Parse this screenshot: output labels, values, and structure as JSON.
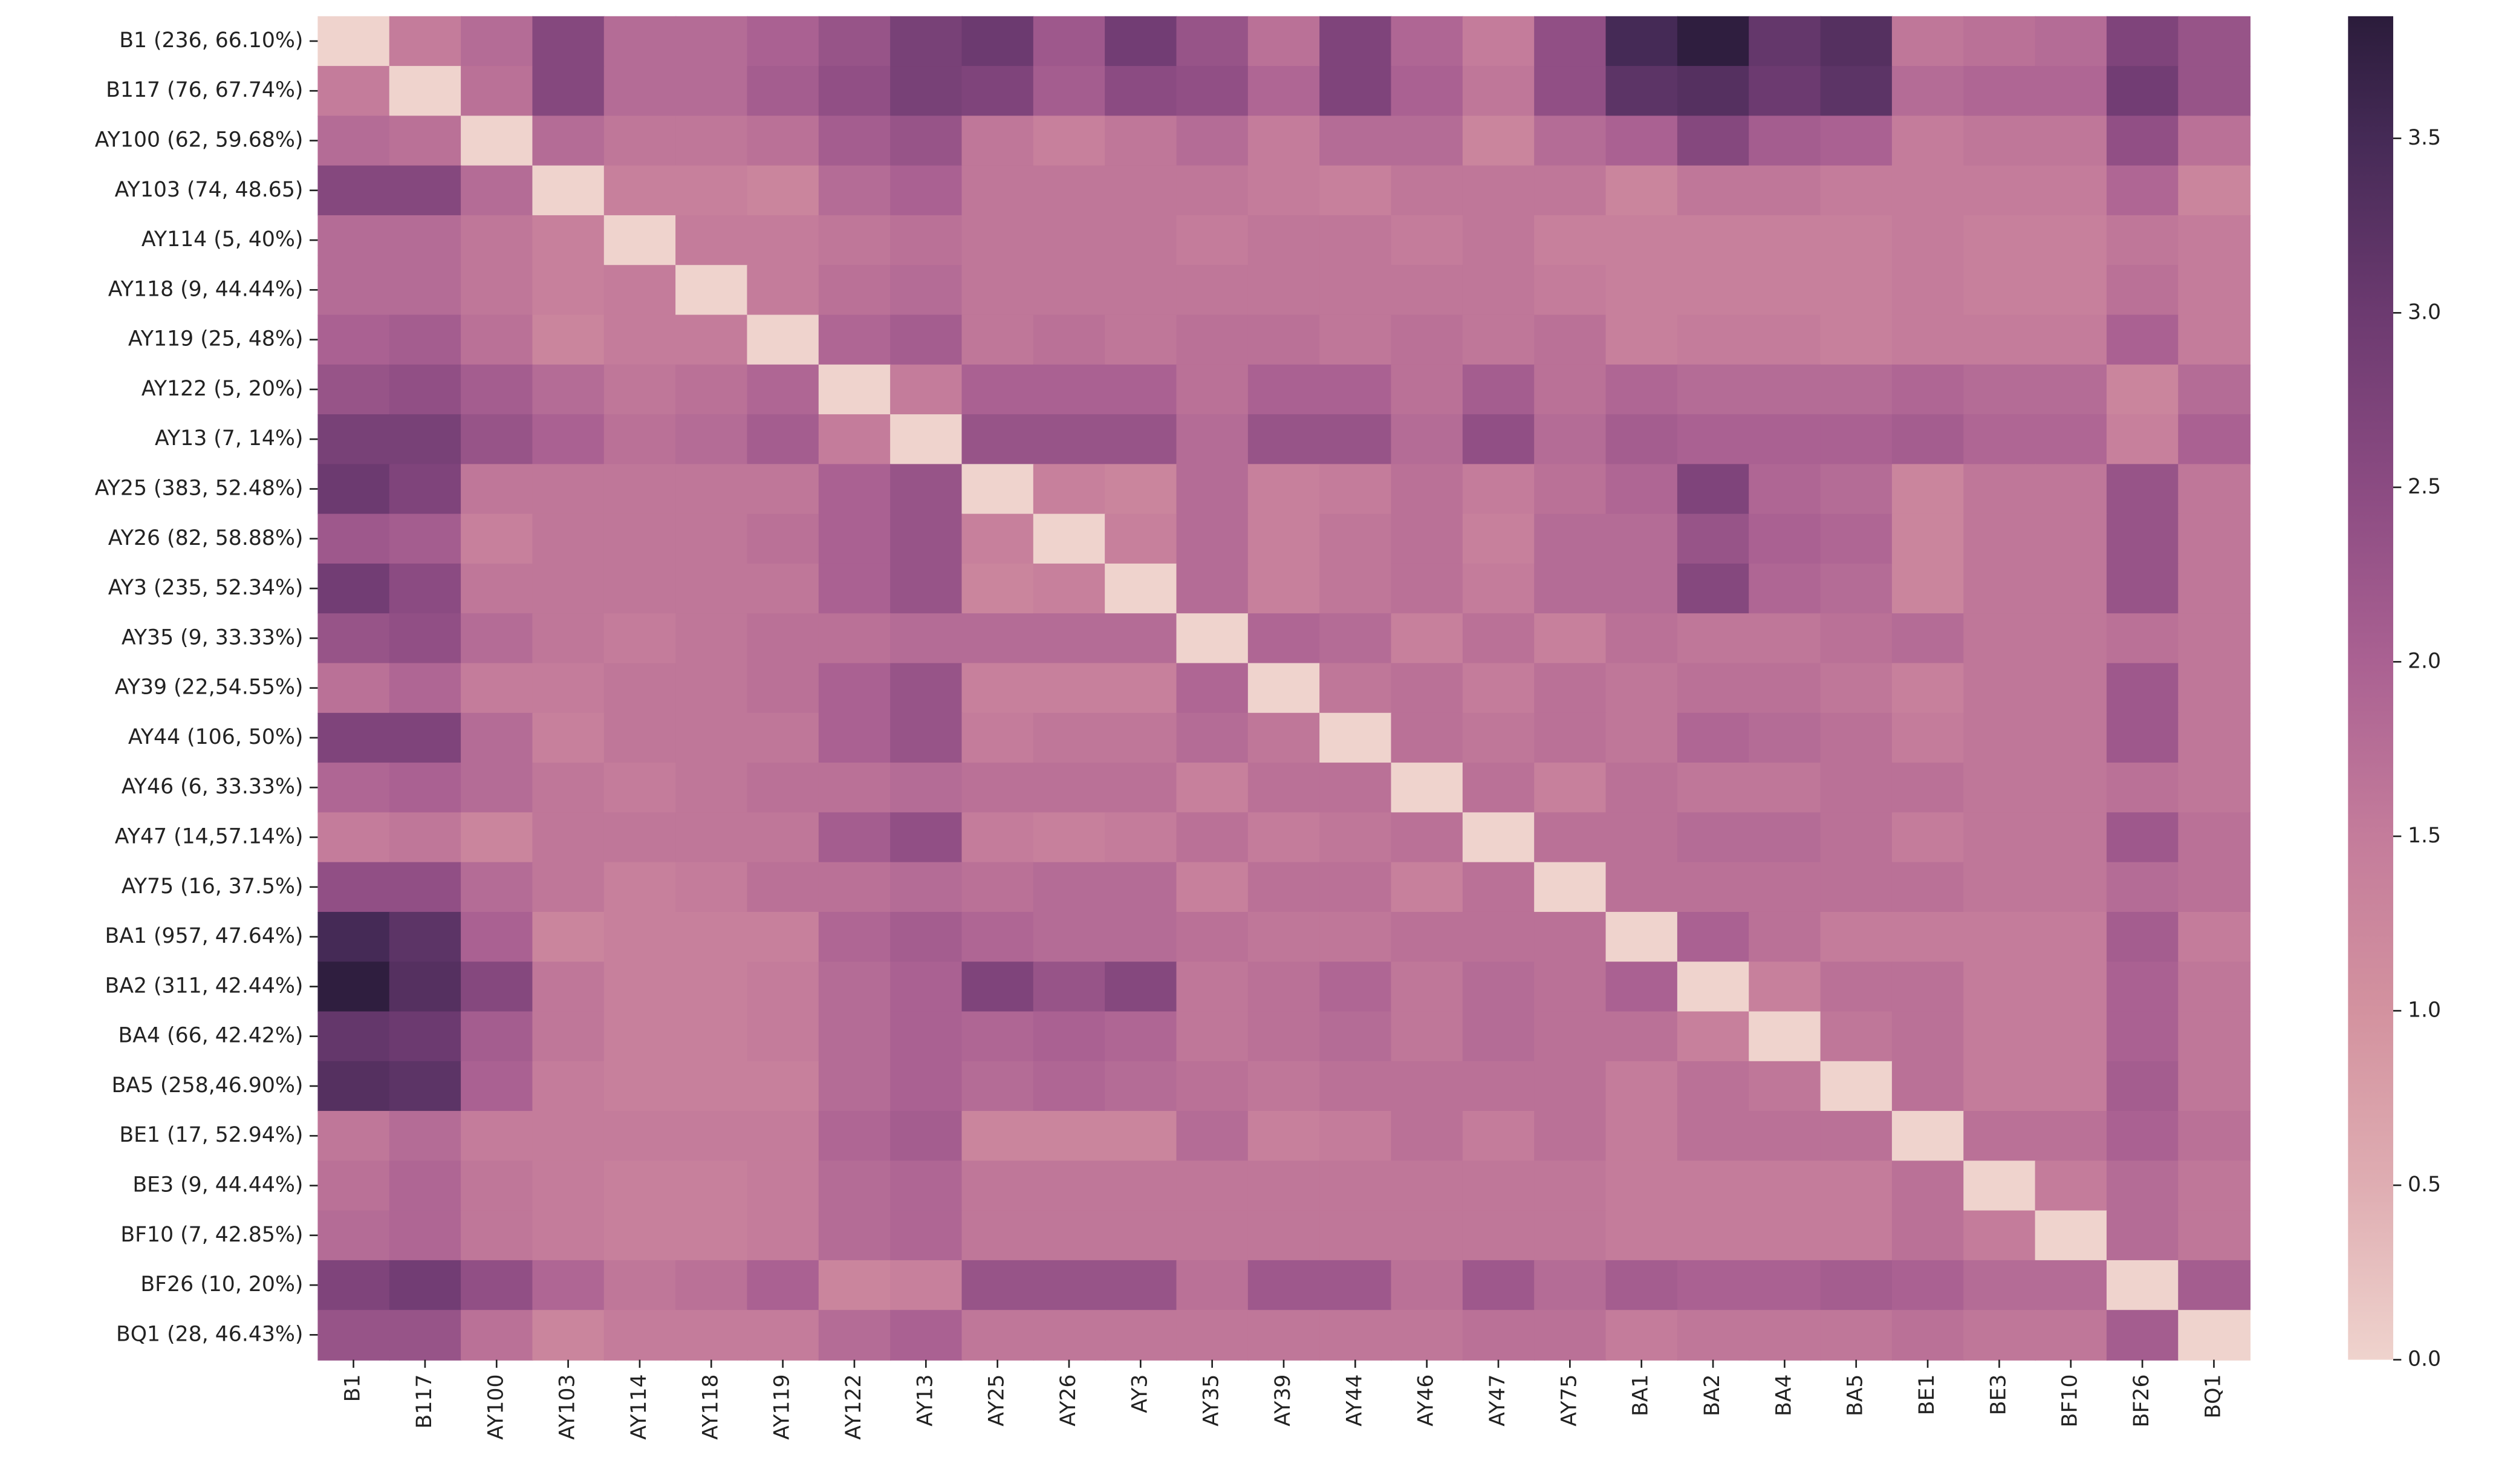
{
  "chart_data": {
    "type": "heatmap",
    "x_categories": [
      "B1",
      "B117",
      "AY100",
      "AY103",
      "AY114",
      "AY118",
      "AY119",
      "AY122",
      "AY13",
      "AY25",
      "AY26",
      "AY3",
      "AY35",
      "AY39",
      "AY44",
      "AY46",
      "AY47",
      "AY75",
      "BA1",
      "BA2",
      "BA4",
      "BA5",
      "BE1",
      "BE3",
      "BF10",
      "BF26",
      "BQ1"
    ],
    "y_categories": [
      "B1 (236, 66.10%)",
      "B117 (76, 67.74%)",
      "AY100 (62, 59.68%)",
      "AY103 (74, 48.65)",
      "AY114 (5, 40%)",
      "AY118 (9, 44.44%)",
      "AY119 (25, 48%)",
      "AY122 (5, 20%)",
      "AY13 (7, 14%)",
      "AY25 (383, 52.48%)",
      "AY26 (82, 58.88%)",
      "AY3 (235, 52.34%)",
      "AY35 (9, 33.33%)",
      "AY39 (22,54.55%)",
      "AY44 (106, 50%)",
      "AY46 (6, 33.33%)",
      "AY47 (14,57.14%)",
      "AY75 (16, 37.5%)",
      "BA1 (957, 47.64%)",
      "BA2 (311, 42.44%)",
      "BA4 (66, 42.42%)",
      "BA5 (258,46.90%)",
      "BE1 (17, 52.94%)",
      "BE3 (9, 44.44%)",
      "BF10 (7, 42.85%)",
      "BF26 (10, 20%)",
      "BQ1 (28, 46.43%)"
    ],
    "values": [
      [
        0,
        1.5,
        1.8,
        2.6,
        1.8,
        1.8,
        2.0,
        2.3,
        2.8,
        3.0,
        2.2,
        2.9,
        2.3,
        1.7,
        2.7,
        1.9,
        1.5,
        2.4,
        3.5,
        3.8,
        3.1,
        3.3,
        1.6,
        1.7,
        1.8,
        2.7,
        2.3
      ],
      [
        1.5,
        0,
        1.7,
        2.6,
        1.8,
        1.8,
        2.1,
        2.4,
        2.8,
        2.7,
        2.1,
        2.5,
        2.4,
        1.9,
        2.7,
        2.0,
        1.6,
        2.4,
        3.2,
        3.3,
        3.0,
        3.2,
        1.8,
        1.9,
        1.9,
        2.9,
        2.3
      ],
      [
        1.8,
        1.7,
        0,
        1.8,
        1.6,
        1.6,
        1.7,
        2.1,
        2.3,
        1.6,
        1.4,
        1.6,
        1.8,
        1.5,
        1.8,
        1.8,
        1.3,
        1.8,
        2.0,
        2.6,
        2.1,
        2.0,
        1.5,
        1.6,
        1.6,
        2.4,
        1.7
      ],
      [
        2.6,
        2.6,
        1.8,
        0,
        1.4,
        1.4,
        1.3,
        1.8,
        2.0,
        1.6,
        1.6,
        1.6,
        1.6,
        1.5,
        1.4,
        1.6,
        1.6,
        1.6,
        1.3,
        1.6,
        1.6,
        1.5,
        1.5,
        1.5,
        1.5,
        1.9,
        1.3
      ],
      [
        1.8,
        1.8,
        1.6,
        1.4,
        0,
        1.5,
        1.5,
        1.6,
        1.7,
        1.6,
        1.6,
        1.6,
        1.5,
        1.6,
        1.6,
        1.5,
        1.6,
        1.4,
        1.4,
        1.4,
        1.4,
        1.4,
        1.5,
        1.4,
        1.4,
        1.6,
        1.5
      ],
      [
        1.8,
        1.8,
        1.6,
        1.4,
        1.5,
        0,
        1.5,
        1.7,
        1.8,
        1.6,
        1.6,
        1.6,
        1.6,
        1.6,
        1.6,
        1.6,
        1.6,
        1.5,
        1.4,
        1.4,
        1.4,
        1.4,
        1.5,
        1.4,
        1.4,
        1.7,
        1.5
      ],
      [
        2.0,
        2.1,
        1.7,
        1.3,
        1.5,
        1.5,
        0,
        1.9,
        2.1,
        1.6,
        1.7,
        1.6,
        1.7,
        1.7,
        1.6,
        1.7,
        1.6,
        1.7,
        1.4,
        1.5,
        1.5,
        1.4,
        1.5,
        1.5,
        1.5,
        2.0,
        1.5
      ],
      [
        2.3,
        2.4,
        2.1,
        1.8,
        1.6,
        1.7,
        1.9,
        0,
        1.5,
        2.0,
        2.0,
        2.0,
        1.7,
        2.0,
        2.0,
        1.7,
        2.1,
        1.7,
        1.9,
        1.8,
        1.8,
        1.8,
        1.9,
        1.8,
        1.8,
        1.3,
        1.8
      ],
      [
        2.8,
        2.8,
        2.3,
        2.0,
        1.7,
        1.8,
        2.1,
        1.5,
        0,
        2.3,
        2.3,
        2.3,
        1.8,
        2.3,
        2.3,
        1.8,
        2.4,
        1.8,
        2.1,
        2.0,
        2.0,
        2.0,
        2.1,
        1.9,
        1.9,
        1.4,
        2.0
      ],
      [
        3.0,
        2.7,
        1.6,
        1.6,
        1.6,
        1.6,
        1.6,
        2.0,
        2.3,
        0,
        1.4,
        1.3,
        1.8,
        1.4,
        1.5,
        1.7,
        1.5,
        1.7,
        1.9,
        2.7,
        1.9,
        1.8,
        1.3,
        1.6,
        1.6,
        2.3,
        1.6
      ],
      [
        2.2,
        2.1,
        1.4,
        1.6,
        1.6,
        1.6,
        1.7,
        2.0,
        2.3,
        1.4,
        0,
        1.4,
        1.8,
        1.4,
        1.6,
        1.7,
        1.4,
        1.8,
        1.8,
        2.3,
        2.0,
        1.9,
        1.3,
        1.6,
        1.6,
        2.3,
        1.6
      ],
      [
        2.9,
        2.5,
        1.6,
        1.6,
        1.6,
        1.6,
        1.6,
        2.0,
        2.3,
        1.3,
        1.4,
        0,
        1.8,
        1.4,
        1.6,
        1.7,
        1.5,
        1.8,
        1.8,
        2.6,
        1.9,
        1.8,
        1.3,
        1.6,
        1.6,
        2.3,
        1.6
      ],
      [
        2.3,
        2.4,
        1.8,
        1.6,
        1.5,
        1.6,
        1.7,
        1.7,
        1.8,
        1.8,
        1.8,
        1.8,
        0,
        1.9,
        1.8,
        1.4,
        1.7,
        1.4,
        1.7,
        1.6,
        1.6,
        1.7,
        1.8,
        1.6,
        1.6,
        1.7,
        1.6
      ],
      [
        1.7,
        1.9,
        1.5,
        1.5,
        1.6,
        1.6,
        1.7,
        2.0,
        2.3,
        1.4,
        1.4,
        1.4,
        1.9,
        0,
        1.6,
        1.7,
        1.5,
        1.7,
        1.6,
        1.7,
        1.7,
        1.6,
        1.4,
        1.6,
        1.6,
        2.2,
        1.6
      ],
      [
        2.7,
        2.7,
        1.8,
        1.4,
        1.6,
        1.6,
        1.6,
        2.0,
        2.3,
        1.5,
        1.6,
        1.6,
        1.8,
        1.6,
        0,
        1.7,
        1.6,
        1.7,
        1.6,
        1.9,
        1.8,
        1.7,
        1.5,
        1.6,
        1.6,
        2.2,
        1.6
      ],
      [
        1.9,
        2.0,
        1.8,
        1.6,
        1.5,
        1.6,
        1.7,
        1.7,
        1.8,
        1.7,
        1.7,
        1.7,
        1.4,
        1.7,
        1.7,
        0,
        1.7,
        1.4,
        1.7,
        1.6,
        1.6,
        1.7,
        1.7,
        1.6,
        1.6,
        1.7,
        1.6
      ],
      [
        1.5,
        1.6,
        1.3,
        1.6,
        1.6,
        1.6,
        1.6,
        2.1,
        2.4,
        1.5,
        1.4,
        1.5,
        1.7,
        1.5,
        1.6,
        1.7,
        0,
        1.7,
        1.7,
        1.8,
        1.8,
        1.7,
        1.5,
        1.6,
        1.6,
        2.2,
        1.7
      ],
      [
        2.4,
        2.4,
        1.8,
        1.6,
        1.4,
        1.5,
        1.7,
        1.7,
        1.8,
        1.7,
        1.8,
        1.8,
        1.4,
        1.7,
        1.7,
        1.4,
        1.7,
        0,
        1.7,
        1.7,
        1.7,
        1.7,
        1.7,
        1.6,
        1.6,
        1.8,
        1.7
      ],
      [
        3.5,
        3.2,
        2.0,
        1.3,
        1.4,
        1.4,
        1.4,
        1.9,
        2.1,
        1.9,
        1.8,
        1.8,
        1.7,
        1.6,
        1.6,
        1.7,
        1.7,
        1.7,
        0,
        2.0,
        1.7,
        1.5,
        1.5,
        1.5,
        1.5,
        2.1,
        1.5
      ],
      [
        3.8,
        3.3,
        2.6,
        1.6,
        1.4,
        1.4,
        1.5,
        1.8,
        2.0,
        2.7,
        2.3,
        2.6,
        1.6,
        1.7,
        1.9,
        1.6,
        1.8,
        1.7,
        2.0,
        0,
        1.4,
        1.7,
        1.7,
        1.5,
        1.5,
        2.0,
        1.6
      ],
      [
        3.1,
        3.0,
        2.1,
        1.6,
        1.4,
        1.4,
        1.5,
        1.8,
        2.0,
        1.9,
        2.0,
        1.9,
        1.6,
        1.7,
        1.8,
        1.6,
        1.8,
        1.7,
        1.7,
        1.4,
        0,
        1.6,
        1.7,
        1.5,
        1.5,
        2.0,
        1.6
      ],
      [
        3.3,
        3.2,
        2.0,
        1.5,
        1.4,
        1.4,
        1.4,
        1.8,
        2.0,
        1.8,
        1.9,
        1.8,
        1.7,
        1.6,
        1.7,
        1.7,
        1.7,
        1.7,
        1.5,
        1.7,
        1.6,
        0,
        1.7,
        1.5,
        1.5,
        2.1,
        1.6
      ],
      [
        1.6,
        1.8,
        1.5,
        1.5,
        1.5,
        1.5,
        1.5,
        1.9,
        2.1,
        1.3,
        1.3,
        1.3,
        1.8,
        1.4,
        1.5,
        1.7,
        1.5,
        1.7,
        1.5,
        1.7,
        1.7,
        1.7,
        0,
        1.7,
        1.7,
        2.0,
        1.7
      ],
      [
        1.7,
        1.9,
        1.6,
        1.5,
        1.4,
        1.4,
        1.5,
        1.8,
        1.9,
        1.6,
        1.6,
        1.6,
        1.6,
        1.6,
        1.6,
        1.6,
        1.6,
        1.6,
        1.5,
        1.5,
        1.5,
        1.5,
        1.7,
        0,
        1.5,
        1.8,
        1.6
      ],
      [
        1.8,
        1.9,
        1.6,
        1.5,
        1.4,
        1.4,
        1.5,
        1.8,
        1.9,
        1.6,
        1.6,
        1.6,
        1.6,
        1.6,
        1.6,
        1.6,
        1.6,
        1.6,
        1.5,
        1.5,
        1.5,
        1.5,
        1.7,
        1.5,
        0,
        1.8,
        1.6
      ],
      [
        2.7,
        2.9,
        2.4,
        1.9,
        1.6,
        1.7,
        2.0,
        1.3,
        1.4,
        2.3,
        2.3,
        2.3,
        1.7,
        2.2,
        2.2,
        1.7,
        2.2,
        1.8,
        2.1,
        2.0,
        2.0,
        2.1,
        2.0,
        1.8,
        1.8,
        0,
        2.1
      ],
      [
        2.3,
        2.3,
        1.7,
        1.3,
        1.5,
        1.5,
        1.5,
        1.8,
        2.0,
        1.6,
        1.6,
        1.6,
        1.6,
        1.6,
        1.6,
        1.6,
        1.7,
        1.7,
        1.5,
        1.6,
        1.6,
        1.6,
        1.7,
        1.6,
        1.6,
        2.1,
        0
      ]
    ],
    "zlim": [
      0,
      3.85
    ],
    "colorbar_ticks": [
      {
        "value": 0,
        "label": "0.0"
      },
      0.5,
      {
        "value": 1,
        "label": "1.0"
      },
      1.5,
      {
        "value": 2,
        "label": "2.0"
      },
      2.5,
      {
        "value": 3,
        "label": "3.0"
      },
      3.5
    ],
    "colormap": [
      [
        0,
        "#efd3cd"
      ],
      [
        0.5,
        "#dfadb2"
      ],
      [
        1.0,
        "#d3929f"
      ],
      [
        1.5,
        "#c47c9b"
      ],
      [
        2.0,
        "#aa6192"
      ],
      [
        2.5,
        "#8b4b82"
      ],
      [
        3.0,
        "#6c3a70"
      ],
      [
        3.5,
        "#452a56"
      ],
      [
        3.85,
        "#2b1c3b"
      ]
    ]
  }
}
